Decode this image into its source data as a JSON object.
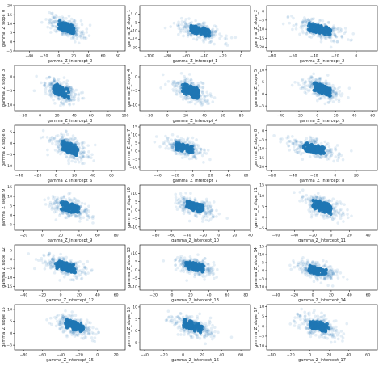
{
  "figure": {
    "point_color": "#1f77b4",
    "point_alpha_outer": 0.06,
    "point_alpha_core": 0.9
  },
  "chart_data": [
    {
      "type": "scatter",
      "xlabel": "gamma_Z_intercept_0",
      "ylabel": "gamma_Z_slope_0",
      "xlim": [
        -60,
        90
      ],
      "ylim": [
        -5,
        20
      ],
      "xticks": [
        "−40",
        "−20",
        "0",
        "20",
        "40",
        "60",
        "80"
      ],
      "xtick_values": [
        -40,
        -20,
        0,
        20,
        40,
        60,
        80
      ],
      "yticks": [
        "−5",
        "0",
        "5",
        "10",
        "15",
        "20"
      ],
      "ytick_values": [
        -5,
        0,
        5,
        10,
        15,
        20
      ],
      "center": [
        10,
        8
      ],
      "spread": [
        12,
        2.5
      ],
      "tilt": -0.15
    },
    {
      "type": "scatter",
      "xlabel": "gamma_Z_intercept_1",
      "ylabel": "gamma_Z_slope_1",
      "xlim": [
        -110,
        10
      ],
      "ylim": [
        -22,
        5
      ],
      "xticks": [
        "−100",
        "−80",
        "−60",
        "−40",
        "−20",
        "0"
      ],
      "xtick_values": [
        -100,
        -80,
        -60,
        -40,
        -20,
        0
      ],
      "yticks": [
        "−20",
        "−15",
        "−10",
        "−5",
        "0"
      ],
      "ytick_values": [
        -20,
        -15,
        -10,
        -5,
        0
      ],
      "center": [
        -45,
        -10
      ],
      "spread": [
        12,
        2.5
      ],
      "tilt": -0.14
    },
    {
      "type": "scatter",
      "xlabel": "gamma_Z_intercept_2",
      "ylabel": "gamma_Z_slope_2",
      "xlim": [
        -85,
        20
      ],
      "ylim": [
        -22,
        3
      ],
      "xticks": [
        "−80",
        "−60",
        "−40",
        "−20",
        "0"
      ],
      "xtick_values": [
        -80,
        -60,
        -40,
        -20,
        0
      ],
      "yticks": [
        "−20",
        "−15",
        "−10",
        "−5",
        "0"
      ],
      "ytick_values": [
        -20,
        -15,
        -10,
        -5,
        0
      ],
      "center": [
        -35,
        -10
      ],
      "spread": [
        12,
        2.5
      ],
      "tilt": -0.14
    },
    {
      "type": "scatter",
      "xlabel": "gamma_Z_intercept_3",
      "ylabel": "gamma_Z_slope_3",
      "xlim": [
        -30,
        100
      ],
      "ylim": [
        -12,
        4
      ],
      "xticks": [
        "−20",
        "0",
        "20",
        "40",
        "60",
        "80",
        "100"
      ],
      "xtick_values": [
        -20,
        0,
        20,
        40,
        60,
        80,
        100
      ],
      "yticks": [
        "−10",
        "−5",
        "0"
      ],
      "ytick_values": [
        -10,
        -5,
        0
      ],
      "center": [
        25,
        -5
      ],
      "spread": [
        10,
        2
      ],
      "tilt": -0.12
    },
    {
      "type": "scatter",
      "xlabel": "gamma_Z_intercept_4",
      "ylabel": "gamma_Z_slope_4",
      "xlim": [
        -30,
        90
      ],
      "ylim": [
        -12,
        4
      ],
      "xticks": [
        "−20",
        "0",
        "20",
        "40",
        "60",
        "80"
      ],
      "xtick_values": [
        -20,
        0,
        20,
        40,
        60,
        80
      ],
      "yticks": [
        "−10",
        "−5",
        "0"
      ],
      "ytick_values": [
        -10,
        -5,
        0
      ],
      "center": [
        25,
        -5
      ],
      "spread": [
        10,
        2
      ],
      "tilt": -0.12
    },
    {
      "type": "scatter",
      "xlabel": "gamma_Z_intercept_5",
      "ylabel": "gamma_Z_slope_5",
      "xlim": [
        -55,
        65
      ],
      "ylim": [
        -7,
        12
      ],
      "xticks": [
        "−40",
        "−20",
        "0",
        "20",
        "40",
        "60"
      ],
      "xtick_values": [
        -40,
        -20,
        0,
        20,
        40,
        60
      ],
      "yticks": [
        "−5",
        "0",
        "5",
        "10"
      ],
      "ytick_values": [
        -5,
        0,
        5,
        10
      ],
      "center": [
        5,
        2
      ],
      "spread": [
        10,
        2
      ],
      "tilt": -0.13
    },
    {
      "type": "scatter",
      "xlabel": "gamma_Z_intercept_6",
      "ylabel": "gamma_Z_slope_6",
      "xlim": [
        -45,
        75
      ],
      "ylim": [
        -12,
        8
      ],
      "xticks": [
        "−40",
        "−20",
        "0",
        "20",
        "40",
        "60"
      ],
      "xtick_values": [
        -40,
        -20,
        0,
        20,
        40,
        60
      ],
      "yticks": [
        "−10",
        "−5",
        "0",
        "5"
      ],
      "ytick_values": [
        -10,
        -5,
        0,
        5
      ],
      "center": [
        15,
        -2
      ],
      "spread": [
        10,
        2.5
      ],
      "tilt": -0.15
    },
    {
      "type": "scatter",
      "xlabel": "gamma_Z_intercept_7",
      "ylabel": "gamma_Z_slope_7",
      "xlim": [
        -60,
        65
      ],
      "ylim": [
        -12,
        16
      ],
      "xticks": [
        "−40",
        "−20",
        "0",
        "20",
        "40",
        "60"
      ],
      "xtick_values": [
        -40,
        -20,
        0,
        20,
        40,
        60
      ],
      "yticks": [
        "−10",
        "−5",
        "0",
        "5",
        "10",
        "15"
      ],
      "ytick_values": [
        -10,
        -5,
        0,
        5,
        10,
        15
      ],
      "center": [
        -10,
        2
      ],
      "spread": [
        11,
        2.5
      ],
      "tilt": -0.12
    },
    {
      "type": "scatter",
      "xlabel": "gamma_Z_intercept_8",
      "ylabel": "gamma_Z_slope_8",
      "xlim": [
        -65,
        40
      ],
      "ylim": [
        -22,
        3
      ],
      "xticks": [
        "−60",
        "−40",
        "−20",
        "0",
        "20"
      ],
      "xtick_values": [
        -60,
        -40,
        -20,
        0,
        20
      ],
      "yticks": [
        "−20",
        "−15",
        "−10",
        "−5",
        "0"
      ],
      "ytick_values": [
        -20,
        -15,
        -10,
        -5,
        0
      ],
      "center": [
        -20,
        -10
      ],
      "spread": [
        11,
        2.5
      ],
      "tilt": -0.14
    },
    {
      "type": "scatter",
      "xlabel": "gamma_Z_intercept_9",
      "ylabel": "gamma_Z_slope_9",
      "xlim": [
        -30,
        90
      ],
      "ylim": [
        -8,
        16
      ],
      "xticks": [
        "−20",
        "0",
        "20",
        "40",
        "60",
        "80"
      ],
      "xtick_values": [
        -20,
        0,
        20,
        40,
        60,
        80
      ],
      "yticks": [
        "−5",
        "0",
        "5",
        "10",
        "15"
      ],
      "ytick_values": [
        -5,
        0,
        5,
        10,
        15
      ],
      "center": [
        30,
        4
      ],
      "spread": [
        11,
        2.5
      ],
      "tilt": -0.13
    },
    {
      "type": "scatter",
      "xlabel": "gamma_Z_intercept_10",
      "ylabel": "gamma_Z_slope_10",
      "xlim": [
        -100,
        40
      ],
      "ylim": [
        -12,
        15
      ],
      "xticks": [
        "−80",
        "−60",
        "−40",
        "−20",
        "0",
        "20",
        "40"
      ],
      "xtick_values": [
        -80,
        -60,
        -40,
        -20,
        0,
        20,
        40
      ],
      "yticks": [
        "−10",
        "−5",
        "0",
        "5",
        "10"
      ],
      "ytick_values": [
        -10,
        -5,
        0,
        5,
        10
      ],
      "center": [
        -30,
        2
      ],
      "spread": [
        12,
        2.5
      ],
      "tilt": -0.12
    },
    {
      "type": "scatter",
      "xlabel": "gamma_Z_intercept_11",
      "ylabel": "gamma_Z_slope_11",
      "xlim": [
        -70,
        50
      ],
      "ylim": [
        -6,
        15
      ],
      "xticks": [
        "−60",
        "−40",
        "−20",
        "0",
        "20",
        "40"
      ],
      "xtick_values": [
        -60,
        -40,
        -20,
        0,
        20,
        40
      ],
      "yticks": [
        "−5",
        "0",
        "5",
        "10",
        "15"
      ],
      "ytick_values": [
        -5,
        0,
        5,
        10,
        15
      ],
      "center": [
        -10,
        5
      ],
      "spread": [
        11,
        2.5
      ],
      "tilt": -0.13
    },
    {
      "type": "scatter",
      "xlabel": "gamma_Z_intercept_12",
      "ylabel": "gamma_Z_slope_12",
      "xlim": [
        -50,
        70
      ],
      "ylim": [
        -17,
        8
      ],
      "xticks": [
        "−40",
        "−20",
        "0",
        "20",
        "40",
        "60"
      ],
      "xtick_values": [
        -40,
        -20,
        0,
        20,
        40,
        60
      ],
      "yticks": [
        "−15",
        "−10",
        "−5",
        "0",
        "5"
      ],
      "ytick_values": [
        -15,
        -10,
        -5,
        0,
        5
      ],
      "center": [
        5,
        -4
      ],
      "spread": [
        12,
        2.5
      ],
      "tilt": -0.12
    },
    {
      "type": "scatter",
      "xlabel": "gamma_Z_intercept_13",
      "ylabel": "gamma_Z_slope_13",
      "xlim": [
        -35,
        85
      ],
      "ylim": [
        -12,
        15
      ],
      "xticks": [
        "−20",
        "0",
        "20",
        "40",
        "60",
        "80"
      ],
      "xtick_values": [
        -20,
        0,
        20,
        40,
        60,
        80
      ],
      "yticks": [
        "−10",
        "−5",
        "0",
        "5",
        "10"
      ],
      "ytick_values": [
        -10,
        -5,
        0,
        5,
        10
      ],
      "center": [
        25,
        2
      ],
      "spread": [
        11,
        2.5
      ],
      "tilt": -0.12
    },
    {
      "type": "scatter",
      "xlabel": "gamma_Z_intercept_14",
      "ylabel": "gamma_Z_slope_14",
      "xlim": [
        -50,
        70
      ],
      "ylim": [
        -12,
        16
      ],
      "xticks": [
        "−40",
        "−20",
        "0",
        "20",
        "40",
        "60"
      ],
      "xtick_values": [
        -40,
        -20,
        0,
        20,
        40,
        60
      ],
      "yticks": [
        "−10",
        "−5",
        "0",
        "5",
        "10",
        "15"
      ],
      "ytick_values": [
        -10,
        -5,
        0,
        5,
        10,
        15
      ],
      "center": [
        5,
        0
      ],
      "spread": [
        11,
        2.5
      ],
      "tilt": -0.14
    },
    {
      "type": "scatter",
      "xlabel": "gamma_Z_intercept_15",
      "ylabel": "gamma_Z_slope_15",
      "xlim": [
        -90,
        30
      ],
      "ylim": [
        -7,
        12
      ],
      "xticks": [
        "−80",
        "−60",
        "−40",
        "−20",
        "0",
        "20"
      ],
      "xtick_values": [
        -80,
        -60,
        -40,
        -20,
        0,
        20
      ],
      "yticks": [
        "−5",
        "0",
        "5",
        "10"
      ],
      "ytick_values": [
        -5,
        0,
        5,
        10
      ],
      "center": [
        -25,
        3
      ],
      "spread": [
        11,
        2
      ],
      "tilt": -0.12
    },
    {
      "type": "scatter",
      "xlabel": "gamma_Z_intercept_16",
      "ylabel": "gamma_Z_slope_16",
      "xlim": [
        -45,
        70
      ],
      "ylim": [
        -8,
        11
      ],
      "xticks": [
        "−40",
        "−20",
        "0",
        "20",
        "40",
        "60"
      ],
      "xtick_values": [
        -40,
        -20,
        0,
        20,
        40,
        60
      ],
      "yticks": [
        "−5",
        "0",
        "5",
        "10"
      ],
      "ytick_values": [
        -5,
        0,
        5,
        10
      ],
      "center": [
        10,
        2
      ],
      "spread": [
        11,
        2
      ],
      "tilt": -0.13
    },
    {
      "type": "scatter",
      "xlabel": "gamma_Z_intercept_17",
      "ylabel": "gamma_Z_slope_17",
      "xlim": [
        -45,
        70
      ],
      "ylim": [
        -12,
        11
      ],
      "xticks": [
        "−40",
        "−20",
        "0",
        "20",
        "40",
        "60"
      ],
      "xtick_values": [
        -40,
        -20,
        0,
        20,
        40,
        60
      ],
      "yticks": [
        "−10",
        "−5",
        "0",
        "5",
        "10"
      ],
      "ytick_values": [
        -10,
        -5,
        0,
        5,
        10
      ],
      "center": [
        10,
        0
      ],
      "spread": [
        11,
        2.5
      ],
      "tilt": -0.13
    }
  ]
}
